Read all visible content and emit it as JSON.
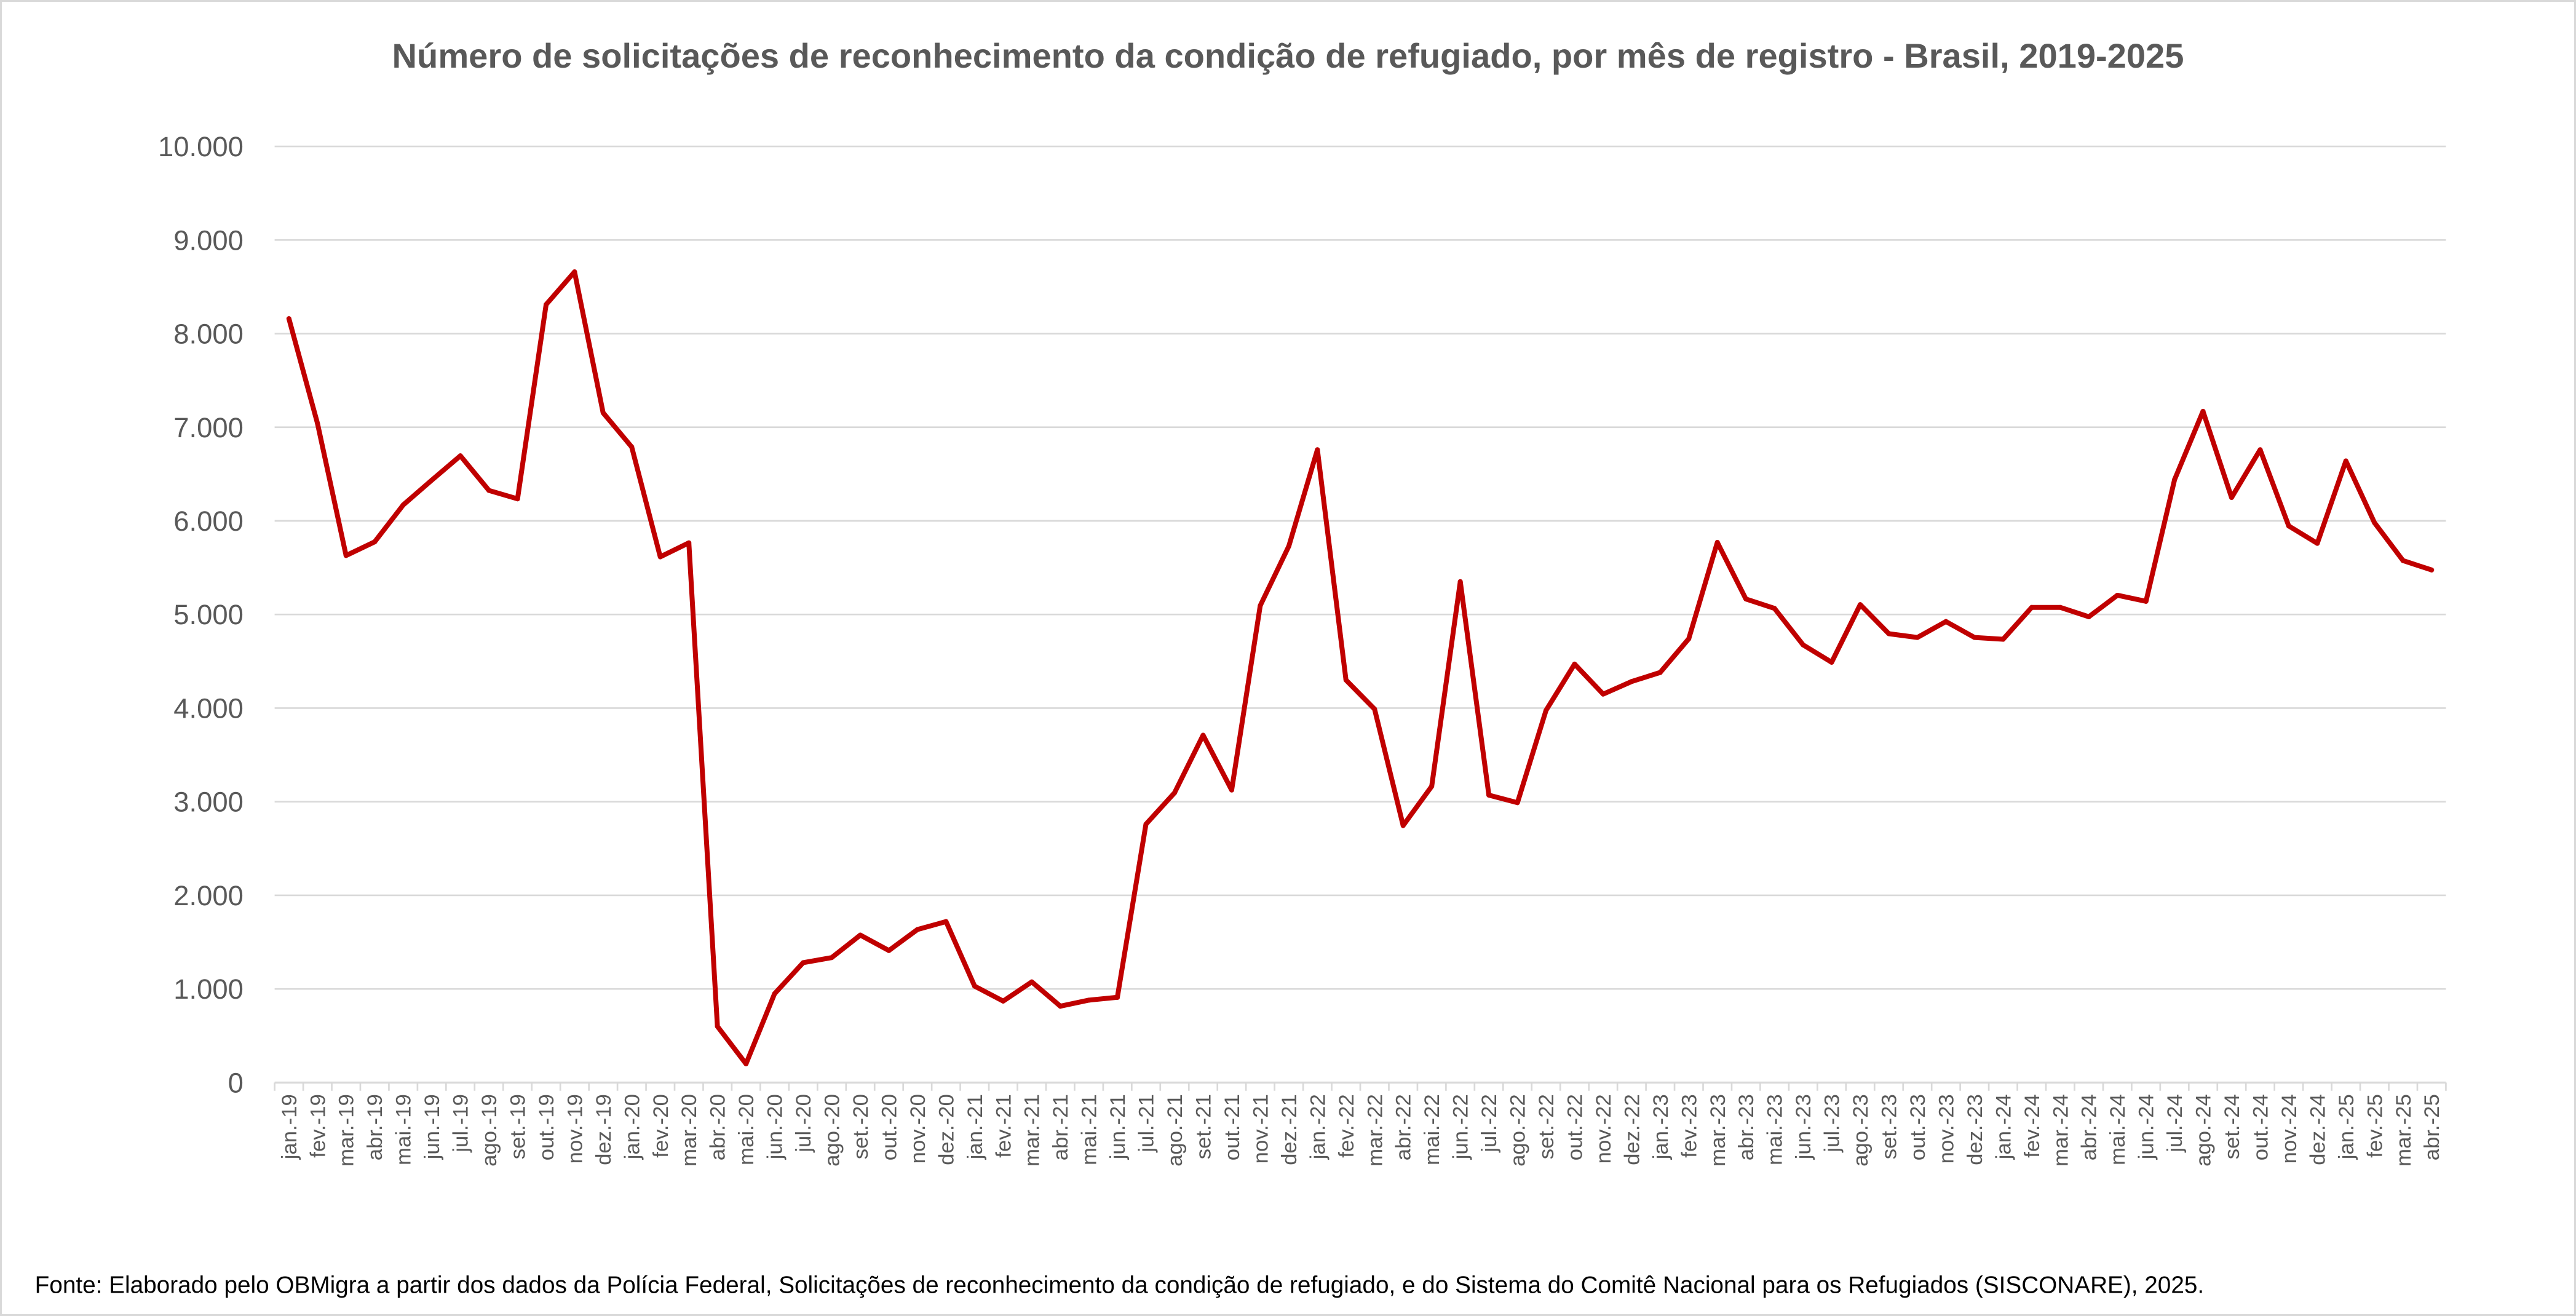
{
  "chart_data": {
    "type": "line",
    "title": "Número de solicitações de reconhecimento da condição de refugiado, por mês de registro - Brasil, 2019-2025",
    "xlabel": "",
    "ylabel": "",
    "ylim": [
      0,
      10000
    ],
    "yticks": [
      "0",
      "1.000",
      "2.000",
      "3.000",
      "4.000",
      "5.000",
      "6.000",
      "7.000",
      "8.000",
      "9.000",
      "10.000"
    ],
    "grid": true,
    "legend": "none",
    "line_color": "#C00000",
    "categories": [
      "jan.-19",
      "fev.-19",
      "mar.-19",
      "abr.-19",
      "mai.-19",
      "jun.-19",
      "jul.-19",
      "ago.-19",
      "set.-19",
      "out.-19",
      "nov.-19",
      "dez.-19",
      "jan.-20",
      "fev.-20",
      "mar.-20",
      "abr.-20",
      "mai.-20",
      "jun.-20",
      "jul.-20",
      "ago.-20",
      "set.-20",
      "out.-20",
      "nov.-20",
      "dez.-20",
      "jan.-21",
      "fev.-21",
      "mar.-21",
      "abr.-21",
      "mai.-21",
      "jun.-21",
      "jul.-21",
      "ago.-21",
      "set.-21",
      "out.-21",
      "nov.-21",
      "dez.-21",
      "jan.-22",
      "fev.-22",
      "mar.-22",
      "abr.-22",
      "mai.-22",
      "jun.-22",
      "jul.-22",
      "ago.-22",
      "set.-22",
      "out.-22",
      "nov.-22",
      "dez.-22",
      "jan.-23",
      "fev.-23",
      "mar.-23",
      "abr.-23",
      "mai.-23",
      "jun.-23",
      "jul.-23",
      "ago.-23",
      "set.-23",
      "out.-23",
      "nov.-23",
      "dez.-23",
      "jan.-24",
      "fev.-24",
      "mar.-24",
      "abr.-24",
      "mai.-24",
      "jun.-24",
      "jul.-24",
      "ago.-24",
      "set.-24",
      "out.-24",
      "nov.-24",
      "dez.-24",
      "jan.-25",
      "fev.-25",
      "mar.-25",
      "abr.-25"
    ],
    "series": [
      {
        "values": [
          8160,
          7040,
          5630,
          5775,
          6170,
          6435,
          6695,
          6325,
          6235,
          8310,
          8660,
          7155,
          6790,
          5615,
          5765,
          600,
          200,
          950,
          1280,
          1335,
          1575,
          1410,
          1635,
          1720,
          1030,
          870,
          1075,
          815,
          880,
          910,
          2760,
          3095,
          3710,
          3125,
          5095,
          5730,
          6760,
          4300,
          3990,
          2745,
          3165,
          5350,
          3070,
          2990,
          3975,
          4470,
          4150,
          4285,
          4380,
          4740,
          5770,
          5165,
          5065,
          4675,
          4490,
          5105,
          4795,
          4755,
          4925,
          4755,
          4735,
          5075,
          5075,
          4975,
          5205,
          5140,
          6440,
          7170,
          6250,
          6760,
          5945,
          5760,
          6640,
          5980,
          5575,
          5475
        ]
      }
    ]
  },
  "footer": {
    "source": "Fonte: Elaborado pelo OBMigra a partir dos dados da Polícia Federal, Solicitações de reconhecimento da condição de refugiado, e do Sistema do Comitê Nacional para os Refugiados (SISCONARE), 2025."
  }
}
